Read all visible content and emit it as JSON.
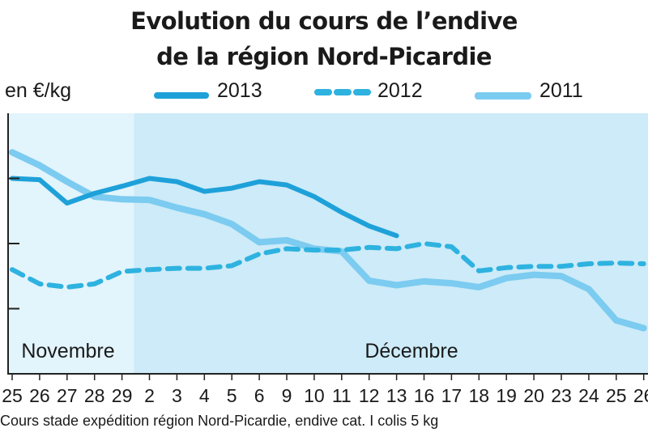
{
  "title_line1": "Evolution du cours de l’endive",
  "title_line2": "de la région Nord-Picardie",
  "footnote": "Cours stade expédition région Nord-Picardie, endive cat. I colis 5 kg",
  "colors": {
    "c2013": "#1ea1d9",
    "c2012": "#2eb2e0",
    "c2011": "#7ccbf0",
    "bgNovembre": "#e2f4fc",
    "bgDecembre": "#cdebf8",
    "axis": "#222222"
  },
  "chart_data": {
    "type": "line",
    "title": "Evolution du cours de l’endive de la région Nord-Picardie",
    "ylabel": "en €/kg",
    "ylim": [
      0,
      4
    ],
    "yticks": [
      1,
      2,
      3
    ],
    "y_tick_labels_shown": false,
    "categories": [
      "25",
      "26",
      "27",
      "28",
      "29",
      "2",
      "3",
      "4",
      "5",
      "6",
      "9",
      "10",
      "11",
      "12",
      "13",
      "16",
      "17",
      "18",
      "19",
      "20",
      "23",
      "24",
      "25",
      "26"
    ],
    "months": [
      {
        "label": "Novembre",
        "from": 0,
        "to": 4
      },
      {
        "label": "Décembre",
        "from": 5,
        "to": 23
      }
    ],
    "series": [
      {
        "name": "2013",
        "style": "solid",
        "values": [
          3.0,
          2.98,
          2.62,
          2.77,
          2.88,
          3.0,
          2.95,
          2.8,
          2.85,
          2.95,
          2.9,
          2.72,
          2.48,
          2.27,
          2.12,
          null,
          null,
          null,
          null,
          null,
          null,
          null,
          null,
          null
        ]
      },
      {
        "name": "2012",
        "style": "dashed",
        "values": [
          1.6,
          1.38,
          1.33,
          1.38,
          1.57,
          1.6,
          1.62,
          1.62,
          1.66,
          1.84,
          1.92,
          1.9,
          1.9,
          1.94,
          1.92,
          2.0,
          1.95,
          1.58,
          1.63,
          1.65,
          1.65,
          1.69,
          1.7,
          1.69
        ]
      },
      {
        "name": "2011",
        "style": "solid-light",
        "values": [
          3.4,
          3.2,
          2.95,
          2.72,
          2.68,
          2.67,
          2.55,
          2.45,
          2.3,
          2.02,
          2.05,
          1.92,
          1.88,
          1.43,
          1.36,
          1.42,
          1.39,
          1.33,
          1.47,
          1.52,
          1.5,
          1.3,
          0.82,
          0.7
        ]
      }
    ],
    "grid": false,
    "legend_position": "top"
  }
}
